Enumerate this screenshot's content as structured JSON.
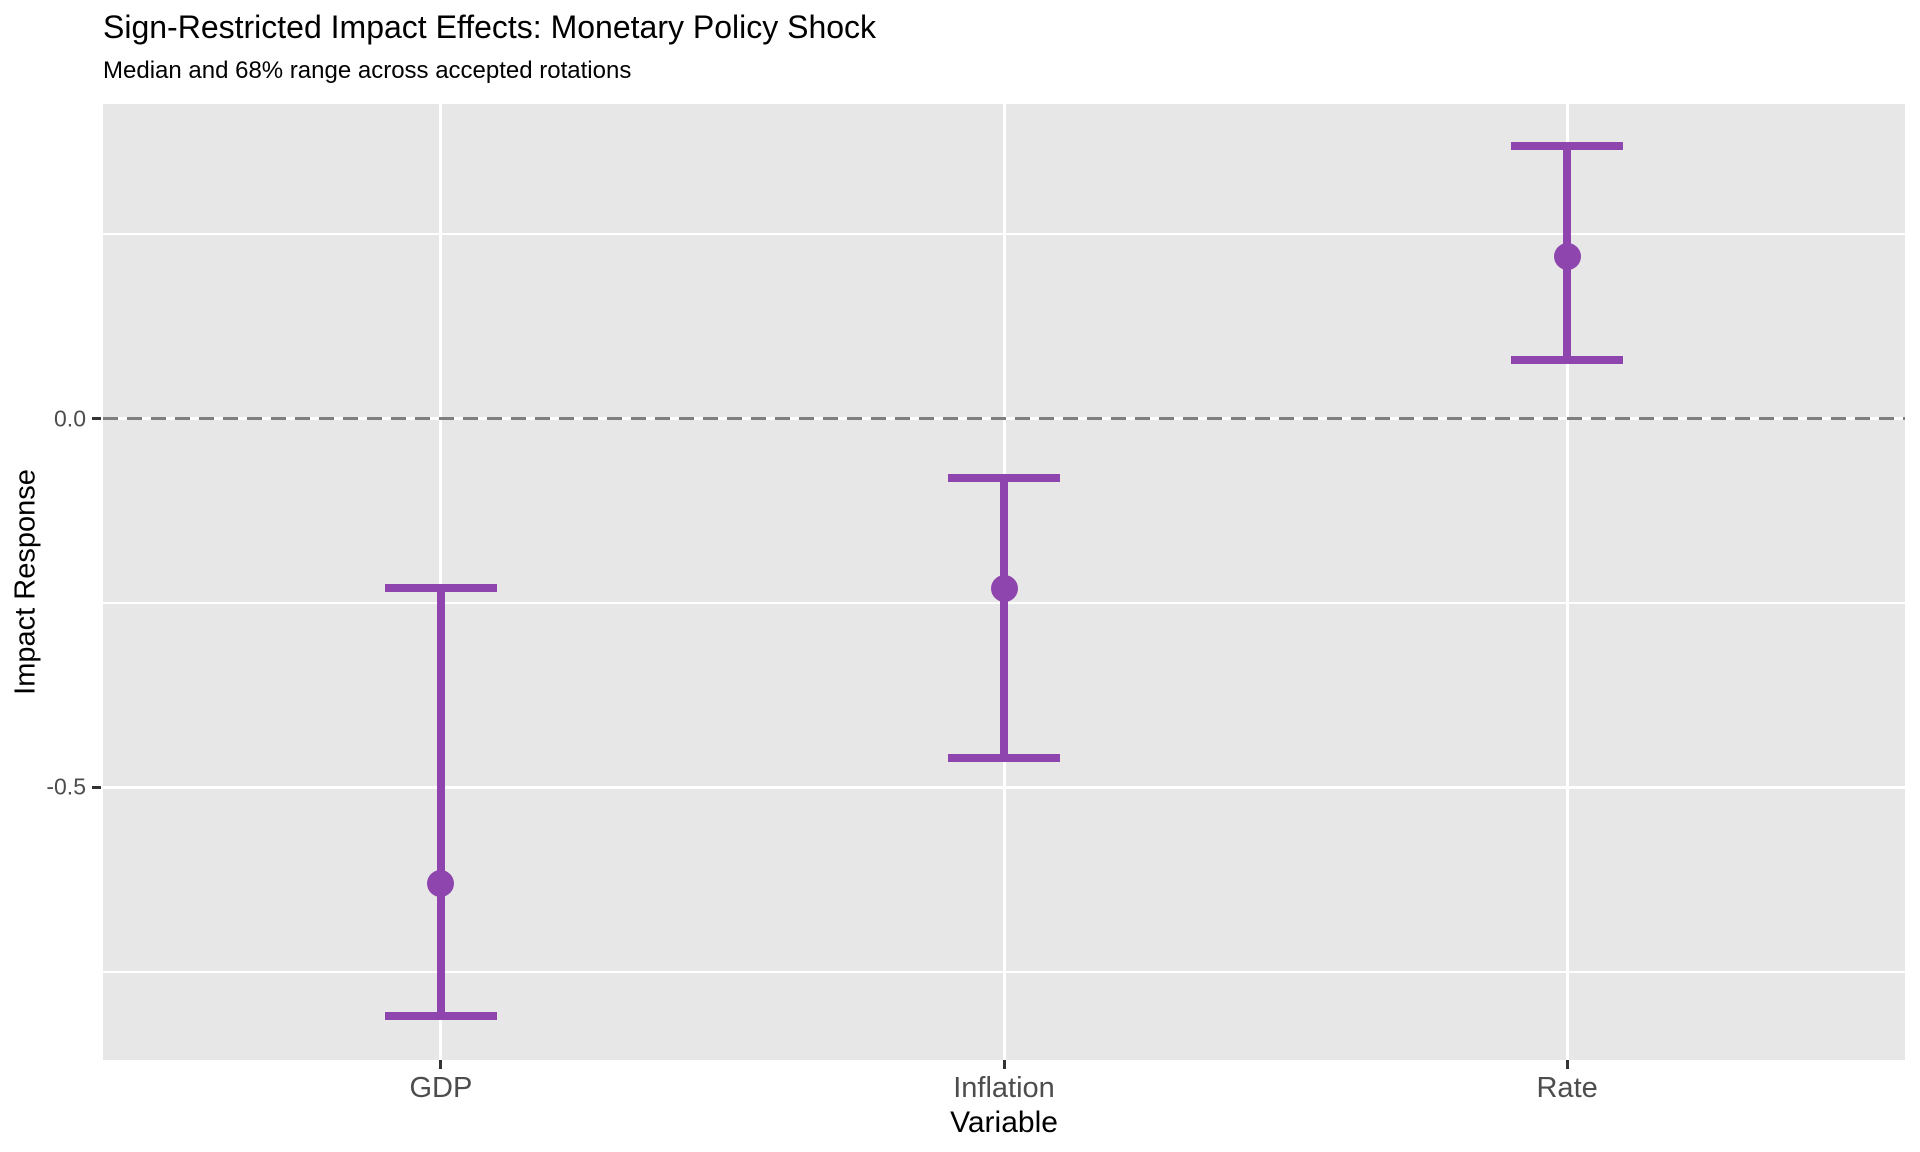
{
  "header": {
    "title": "Sign-Restricted Impact Effects: Monetary Policy Shock",
    "subtitle": "Median and 68% range across accepted rotations"
  },
  "chart_data": {
    "type": "scatter",
    "subtype": "pointrange-errorbar",
    "title": "Sign-Restricted Impact Effects: Monetary Policy Shock",
    "subtitle": "Median and 68% range across accepted rotations",
    "xlabel": "Variable",
    "ylabel": "Impact Response",
    "categories": [
      "GDP",
      "Inflation",
      "Rate"
    ],
    "points": [
      {
        "category": "GDP",
        "median": -0.63,
        "lower": -0.81,
        "upper": -0.23
      },
      {
        "category": "Inflation",
        "median": -0.23,
        "lower": -0.46,
        "upper": -0.08
      },
      {
        "category": "Rate",
        "median": 0.22,
        "lower": 0.08,
        "upper": 0.37
      }
    ],
    "ylim": [
      -0.87,
      0.427
    ],
    "yticks": [
      {
        "value": 0.0,
        "label": "0.0"
      },
      {
        "value": -0.5,
        "label": "-0.5"
      }
    ],
    "y_minor_gridlines": [
      0.25,
      -0.25,
      -0.75
    ],
    "reference_line": {
      "y": 0.0,
      "style": "dashed",
      "color": "#7f7f7f"
    },
    "grid": true,
    "legend": "none",
    "colors": {
      "series": "#8f45ae",
      "panel_background": "#e7e7e7",
      "gridline": "#ffffff",
      "reference_line": "#7f7f7f",
      "axis_text": "#4d4d4d",
      "title_text": "#000000"
    }
  }
}
